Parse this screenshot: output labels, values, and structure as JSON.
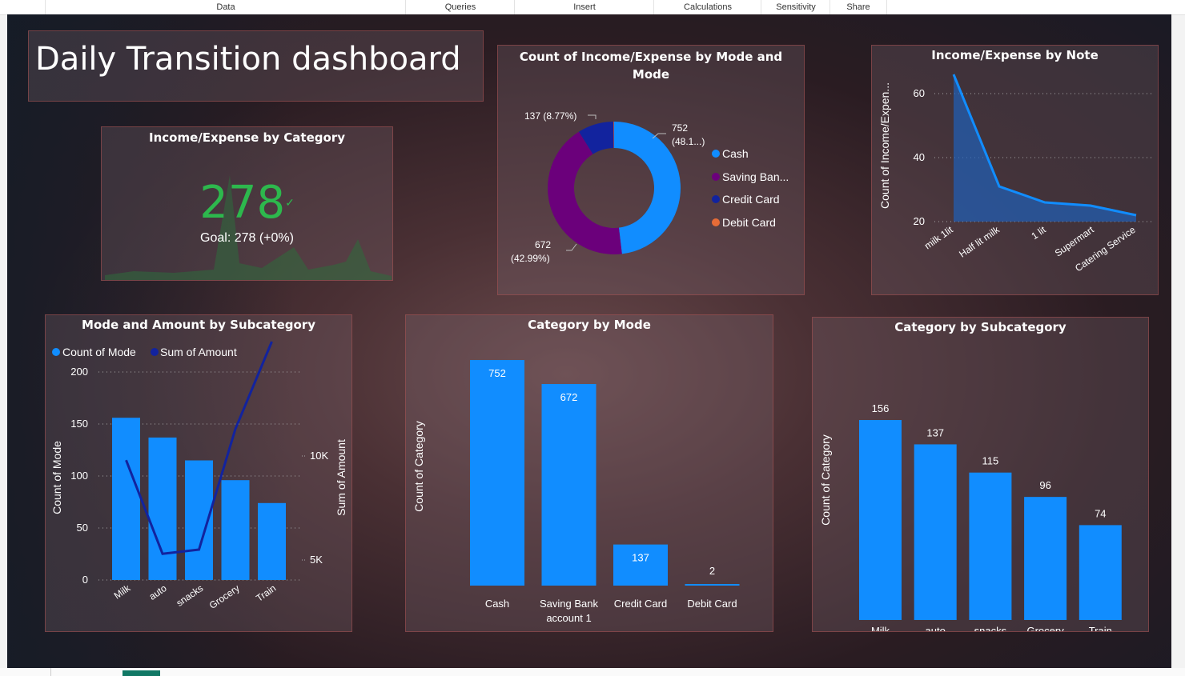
{
  "ribbon": {
    "tabs": [
      "Data",
      "Queries",
      "Insert",
      "Calculations",
      "Sensitivity",
      "Share"
    ]
  },
  "dashboard": {
    "title": "Daily Transition dashboard"
  },
  "kpi": {
    "title": "Income/Expense by Category",
    "value": "278",
    "goal": "Goal: 278 (+0%)",
    "color": "#2db84d"
  },
  "donut": {
    "title": "Count of Income/Expense by Mode and Mode",
    "legend": [
      "Cash",
      "Saving Ban...",
      "Credit Card",
      "Debit Card"
    ],
    "legend_colors": [
      "#118dff",
      "#6b007b",
      "#12239e",
      "#e66c37"
    ],
    "label_cash": [
      "752",
      "(48.1...)"
    ],
    "label_saving": [
      "672",
      "(42.99%)"
    ],
    "label_credit": "137 (8.77%)"
  },
  "colors": {
    "accent": "#118dff",
    "line": "#12239e"
  },
  "chart_data": [
    {
      "type": "pie",
      "title": "Count of Income/Expense by Mode and Mode",
      "categories": [
        "Cash",
        "Saving Bank account 1",
        "Credit Card",
        "Debit Card"
      ],
      "values": [
        752,
        672,
        137,
        2
      ],
      "donut": true
    },
    {
      "type": "area",
      "title": "Income/Expense by Note",
      "categories": [
        "milk 1lit",
        "Half lit milk",
        "1 lit",
        "Supermart",
        "Catering Service"
      ],
      "values": [
        66,
        31,
        26,
        25,
        22
      ],
      "ylabel": "Count of Income/Expen...",
      "yticks": [
        "60",
        "40",
        "20"
      ],
      "ylim": [
        20,
        65
      ]
    },
    {
      "type": "bar",
      "title": "Mode and Amount by Subcategory",
      "categories": [
        "Milk",
        "auto",
        "snacks",
        "Grocery",
        "Train"
      ],
      "series": [
        {
          "name": "Count of Mode",
          "values": [
            156,
            137,
            115,
            96,
            74
          ]
        },
        {
          "name": "Sum of Amount",
          "values": [
            9800,
            5300,
            5500,
            11300,
            15500
          ]
        }
      ],
      "ylabel": "Count of Mode",
      "y2label": "Sum of Amount",
      "yticks": [
        "0",
        "50",
        "100",
        "150",
        "200"
      ],
      "y2ticks": [
        "5K",
        "10K"
      ],
      "ylim": [
        0,
        200
      ]
    },
    {
      "type": "bar",
      "title": "Category by Mode",
      "categories": [
        "Cash",
        "Saving Bank account 1",
        "Credit Card",
        "Debit Card"
      ],
      "cat_lines": [
        [
          "Cash"
        ],
        [
          "Saving Bank",
          "account 1"
        ],
        [
          "Credit Card"
        ],
        [
          "Debit Card"
        ]
      ],
      "values": [
        752,
        672,
        137,
        2
      ],
      "labels": [
        "752",
        "672",
        "137",
        "2"
      ],
      "ylabel": "Count of Category"
    },
    {
      "type": "bar",
      "title": "Category by Subcategory",
      "categories": [
        "Milk",
        "auto",
        "snacks",
        "Grocery",
        "Train"
      ],
      "values": [
        156,
        137,
        115,
        96,
        74
      ],
      "labels": [
        "156",
        "137",
        "115",
        "96",
        "74"
      ],
      "ylabel": "Count of Category"
    }
  ]
}
